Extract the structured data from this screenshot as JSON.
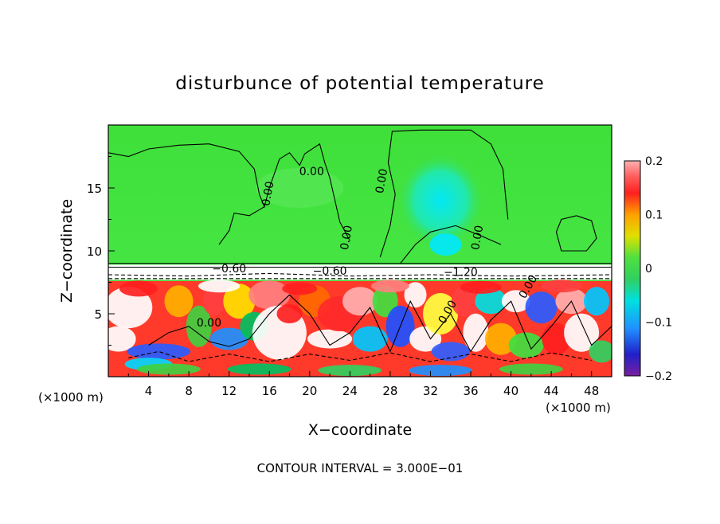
{
  "chart_data": {
    "type": "heatmap",
    "title": "disturbunce of potential temperature",
    "xlabel": "X−coordinate",
    "ylabel": "Z−coordinate",
    "x_unit": "(×1000 m)",
    "z_unit": "(×1000 m)",
    "xlim": [
      0,
      50
    ],
    "ylim": [
      0,
      20
    ],
    "x_ticks": [
      "4",
      "8",
      "12",
      "16",
      "20",
      "24",
      "28",
      "32",
      "36",
      "40",
      "44",
      "48"
    ],
    "y_ticks": [
      "5",
      "10",
      "15"
    ],
    "colorbar": {
      "range": [
        -0.2,
        0.2
      ],
      "tick_labels": [
        "0.2",
        "0.1",
        "0",
        "−0.1",
        "−0.2"
      ]
    },
    "contour_labels": [
      "0.00",
      "0.00",
      "0.00",
      "0.00",
      "0.00",
      "0.00",
      "−0.60",
      "−0.60",
      "−1.20",
      "0.00",
      "0.00"
    ],
    "contour_interval_text": "CONTOUR INTERVAL = 3.000E−01"
  }
}
